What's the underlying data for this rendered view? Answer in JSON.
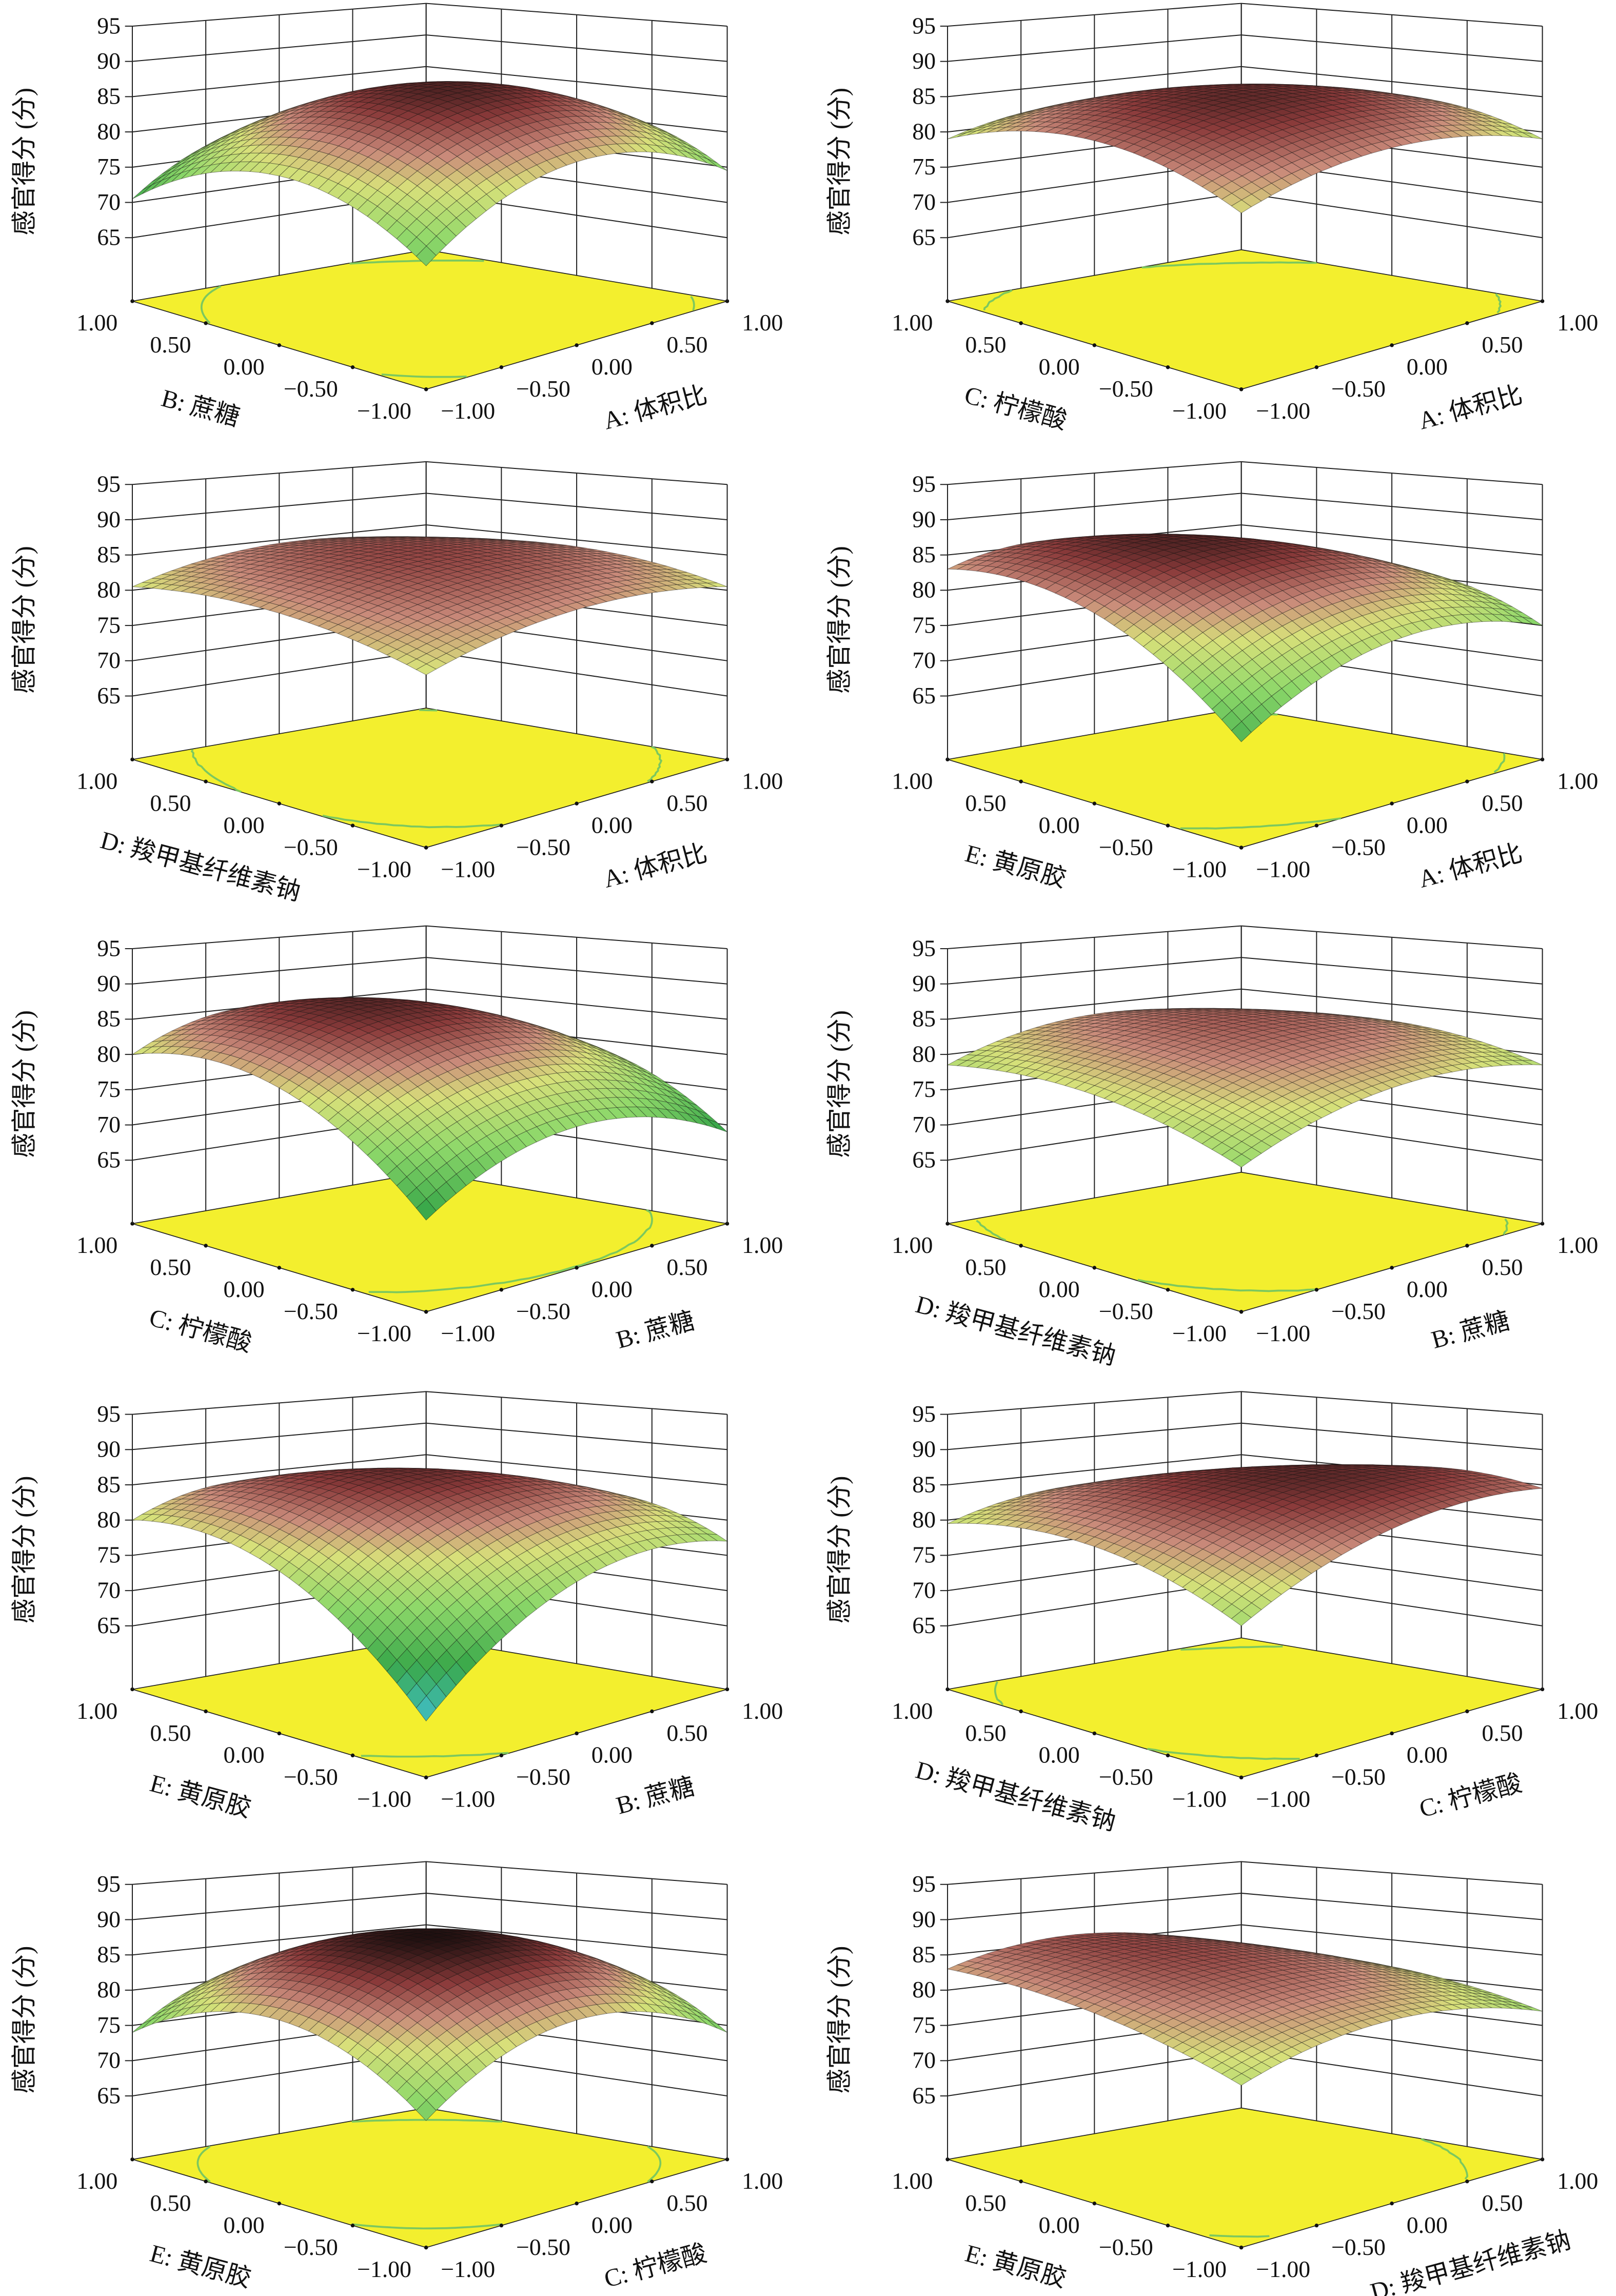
{
  "chart_data": [
    {
      "type": "surface",
      "panel": 1,
      "x_label": "A: 体积比",
      "y_label": "B: 蔗糖",
      "z_label": "感官得分 (分)",
      "model": {
        "c0": 88.5,
        "c1": 0.5,
        "c2": -1.5,
        "c11": -8,
        "c22": -8,
        "c12": 0
      }
    },
    {
      "type": "surface",
      "panel": 2,
      "x_label": "A: 体积比",
      "y_label": "C: 柠檬酸",
      "z_label": "感官得分 (分)",
      "model": {
        "c0": 88,
        "c1": -1,
        "c2": -1,
        "c11": -4,
        "c22": -5,
        "c12": 0
      }
    },
    {
      "type": "surface",
      "panel": 3,
      "x_label": "A: 体积比",
      "y_label": "D: 羧甲基纤维素钠",
      "z_label": "感官得分 (分)",
      "model": {
        "c0": 86.5,
        "c1": 0.5,
        "c2": 0.5,
        "c11": -3,
        "c22": -2.5,
        "c12": 0.5
      }
    },
    {
      "type": "surface",
      "panel": 4,
      "x_label": "A: 体积比",
      "y_label": "E: 黄原胶",
      "z_label": "感官得分 (分)",
      "model": {
        "c0": 88,
        "c1": -1,
        "c2": 3,
        "c11": -6,
        "c22": -6,
        "c12": -3
      }
    },
    {
      "type": "surface",
      "panel": 5,
      "x_label": "B: 蔗糖",
      "y_label": "C: 柠檬酸",
      "z_label": "感官得分 (分)",
      "model": {
        "c0": 87.5,
        "c1": -1,
        "c2": 4.5,
        "c11": -7,
        "c22": -7,
        "c12": -1
      }
    },
    {
      "type": "surface",
      "panel": 6,
      "x_label": "B: 蔗糖",
      "y_label": "D: 羧甲基纤维素钠",
      "z_label": "感官得分 (分)",
      "model": {
        "c0": 85.5,
        "c1": 1,
        "c2": 1,
        "c11": -4,
        "c22": -3,
        "c12": 0
      }
    },
    {
      "type": "surface",
      "panel": 7,
      "x_label": "B: 蔗糖",
      "y_label": "E: 黄原胶",
      "z_label": "感官得分 (分)",
      "model": {
        "c0": 87.5,
        "c1": 1.5,
        "c2": 3,
        "c11": -7,
        "c22": -7,
        "c12": -5
      }
    },
    {
      "type": "surface",
      "panel": 8,
      "x_label": "C: 柠檬酸",
      "y_label": "D: 羧甲基纤维素钠",
      "z_label": "感官得分 (分)",
      "model": {
        "c0": 88,
        "c1": 1.5,
        "c2": -1,
        "c11": -4,
        "c22": -4,
        "c12": -2
      }
    },
    {
      "type": "surface",
      "panel": 9,
      "x_label": "C: 柠檬酸",
      "y_label": "E: 黄原胶",
      "z_label": "感官得分 (分)",
      "model": {
        "c0": 90,
        "c1": 0,
        "c2": 0,
        "c11": -8,
        "c22": -8,
        "c12": 0
      }
    },
    {
      "type": "surface",
      "panel": 10,
      "x_label": "D: 羧甲基纤维素钠",
      "y_label": "E: 黄原胶",
      "z_label": "感官得分 (分)",
      "model": {
        "c0": 86,
        "c1": -1,
        "c2": 2,
        "c11": -4,
        "c22": -2,
        "c12": 0
      }
    }
  ],
  "axes": {
    "z_ticks": [
      "65",
      "70",
      "75",
      "80",
      "85",
      "90",
      "95"
    ],
    "z_values": [
      65,
      70,
      75,
      80,
      85,
      90,
      95
    ],
    "factor_ticks": [
      "−1.00",
      "−0.50",
      "0.00",
      "0.50",
      "1.00"
    ],
    "factor_values": [
      -1,
      -0.5,
      0,
      0.5,
      1
    ],
    "zlim": [
      56,
      95
    ]
  },
  "colors": {
    "floor": "#f3ef2e",
    "contour": "#7cc85e",
    "grid": "#222222"
  }
}
